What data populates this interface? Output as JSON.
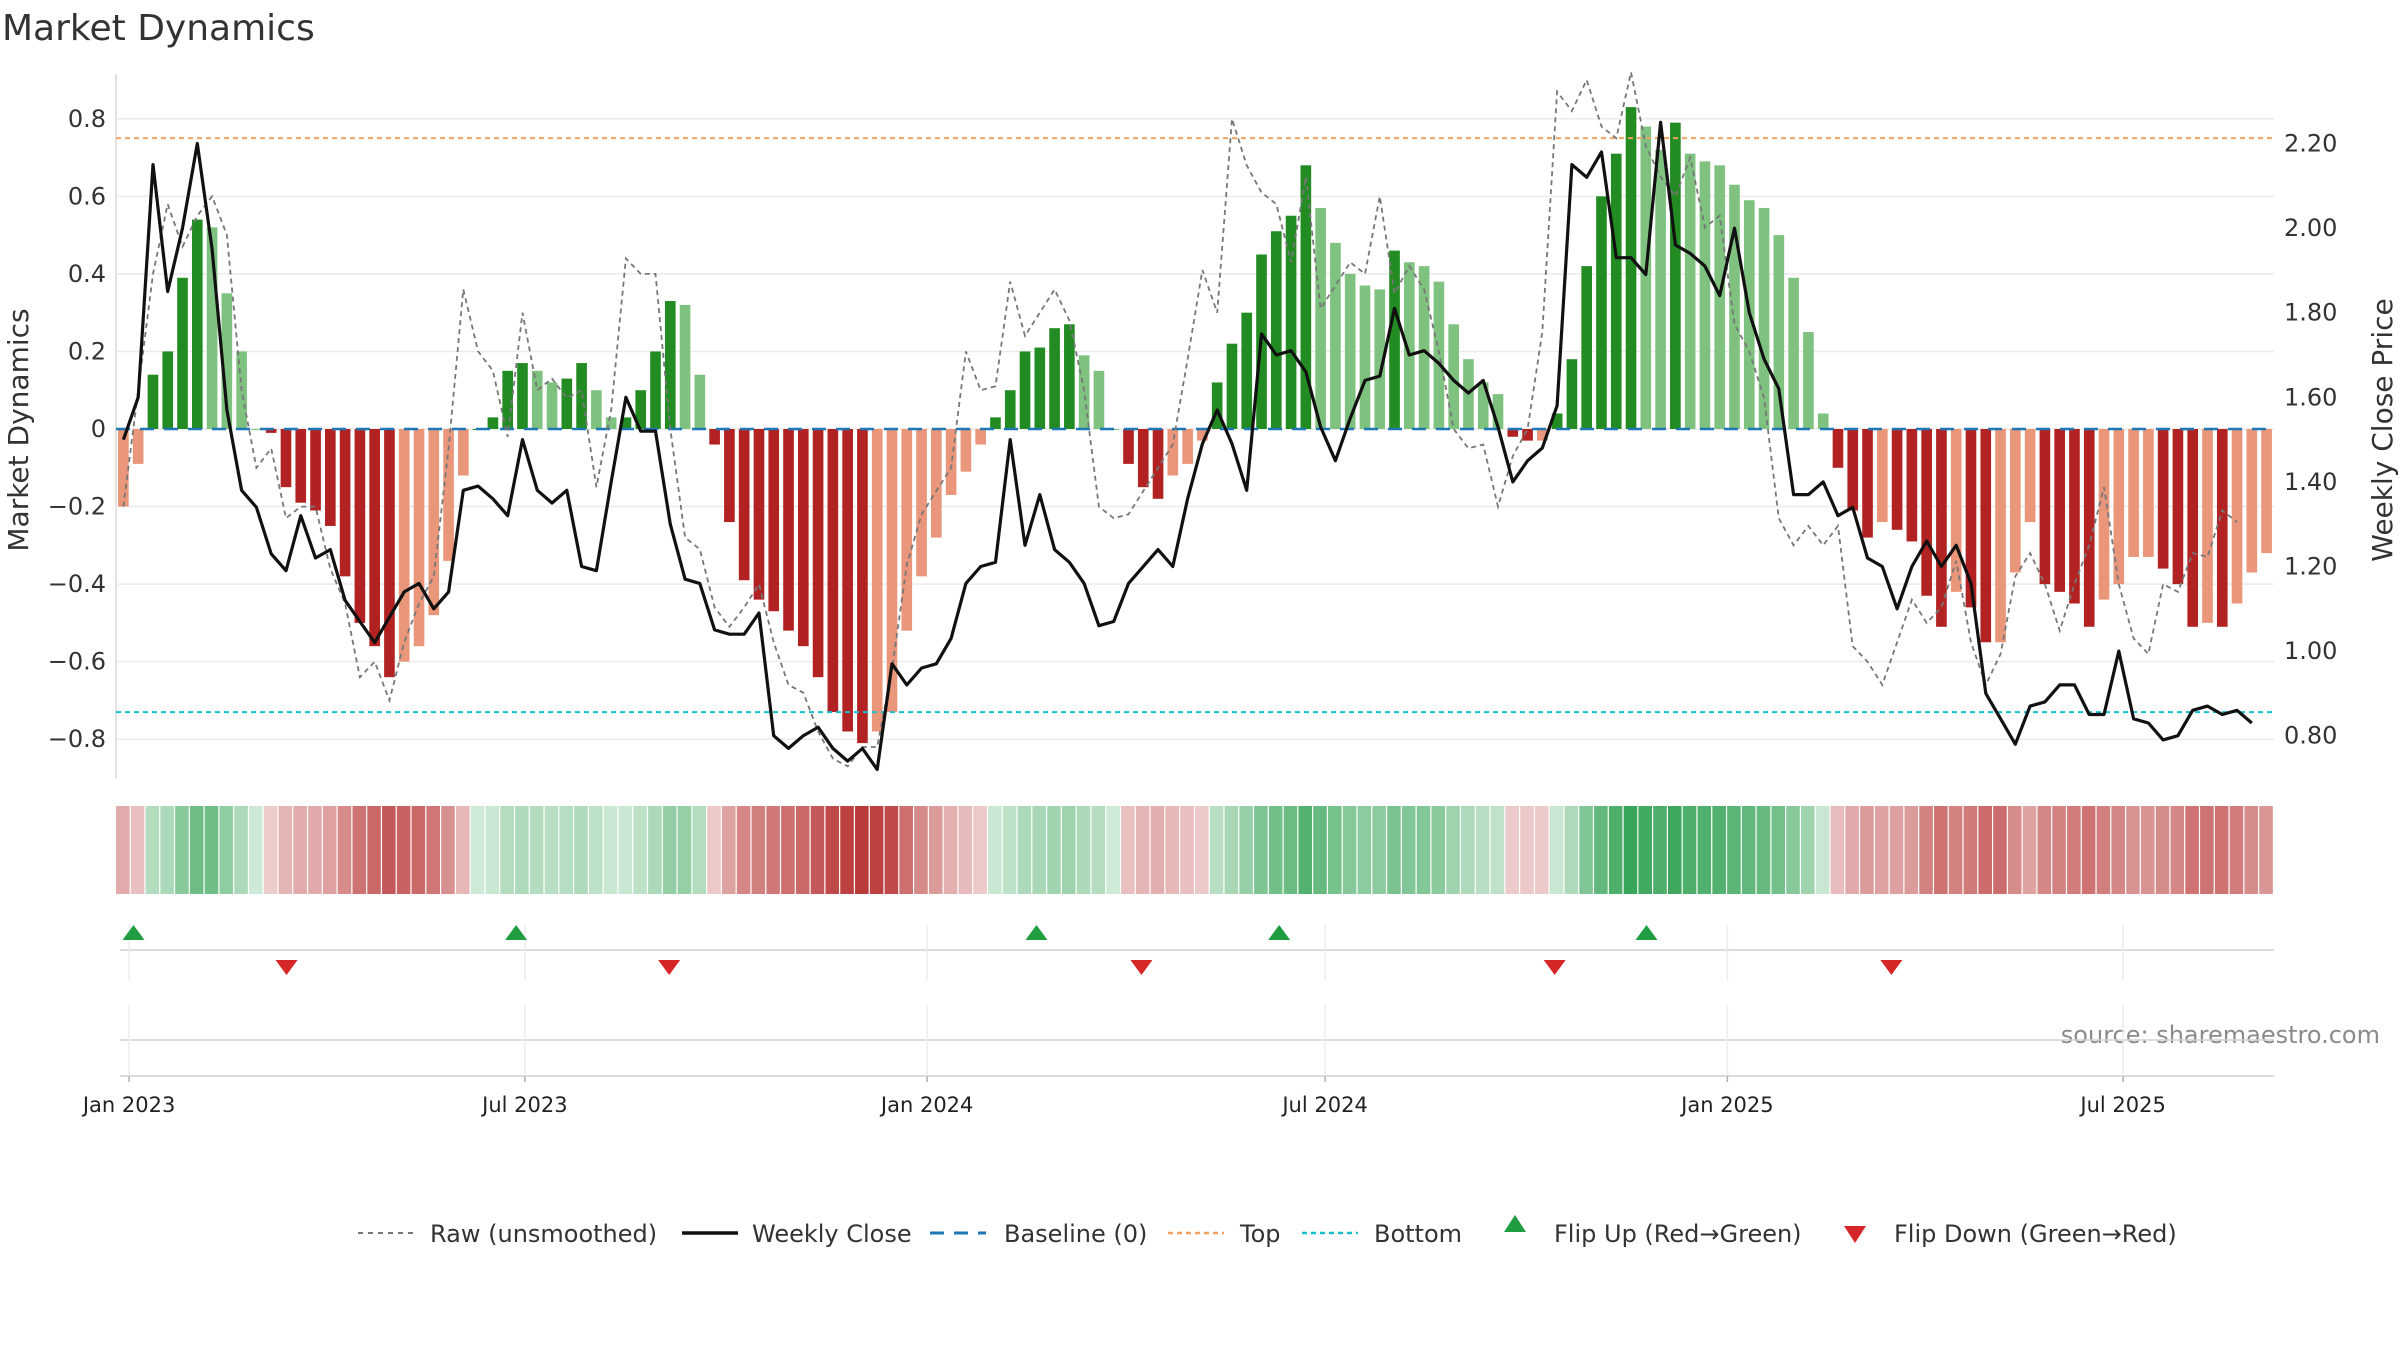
{
  "chart_data": {
    "type": "bar",
    "title": "Market Dynamics",
    "ylabel_left": "Market Dynamics",
    "ylabel_right": "Weekly Close Price",
    "source": "source: sharemaestro.com",
    "ylim_left": [
      -0.9,
      0.9
    ],
    "ylim_right": [
      0.7,
      2.35
    ],
    "y_ticks_left": [
      0.8,
      0.6,
      0.4,
      0.2,
      0,
      -0.2,
      -0.4,
      -0.6,
      -0.8
    ],
    "y_tick_labels_left": [
      "0.8",
      "0.6",
      "0.4",
      "0.2",
      "0",
      "−0.2",
      "−0.4",
      "−0.6",
      "−0.8"
    ],
    "y_ticks_right": [
      2.2,
      2.0,
      1.8,
      1.6,
      1.4,
      1.2,
      1.0,
      0.8
    ],
    "y_tick_labels_right": [
      "2.20",
      "2.00",
      "1.80",
      "1.60",
      "1.40",
      "1.20",
      "1.00",
      "0.80"
    ],
    "x_start": "2022-12-26",
    "x_end": "2025-09-08",
    "x_ticks": [
      {
        "date": "2023-01-01",
        "label": "Jan 2023"
      },
      {
        "date": "2023-07-01",
        "label": "Jul 2023"
      },
      {
        "date": "2024-01-01",
        "label": "Jan 2024"
      },
      {
        "date": "2024-07-01",
        "label": "Jul 2024"
      },
      {
        "date": "2025-01-01",
        "label": "Jan 2025"
      },
      {
        "date": "2025-07-01",
        "label": "Jul 2025"
      }
    ],
    "top_level": 0.75,
    "bottom_level": -0.73,
    "baseline": 0,
    "dynamics": [
      -0.2,
      -0.09,
      0.14,
      0.2,
      0.39,
      0.54,
      0.52,
      0.35,
      0.2,
      0,
      -0.01,
      -0.15,
      -0.19,
      -0.21,
      -0.25,
      -0.38,
      -0.5,
      -0.56,
      -0.64,
      -0.6,
      -0.56,
      -0.48,
      -0.34,
      -0.12,
      0,
      0.03,
      0.15,
      0.17,
      0.15,
      0.12,
      0.13,
      0.17,
      0.1,
      0.03,
      0.03,
      0.1,
      0.2,
      0.33,
      0.32,
      0.14,
      -0.04,
      -0.24,
      -0.39,
      -0.44,
      -0.47,
      -0.52,
      -0.56,
      -0.64,
      -0.73,
      -0.78,
      -0.81,
      -0.78,
      -0.73,
      -0.52,
      -0.38,
      -0.28,
      -0.17,
      -0.11,
      -0.04,
      0.03,
      0.1,
      0.2,
      0.21,
      0.26,
      0.27,
      0.19,
      0.15,
      0,
      -0.09,
      -0.15,
      -0.18,
      -0.12,
      -0.09,
      -0.03,
      0.12,
      0.22,
      0.3,
      0.45,
      0.51,
      0.55,
      0.68,
      0.57,
      0.48,
      0.4,
      0.37,
      0.36,
      0.46,
      0.43,
      0.42,
      0.38,
      0.27,
      0.18,
      0.12,
      0.09,
      -0.02,
      -0.03,
      -0.03,
      0.04,
      0.18,
      0.42,
      0.6,
      0.71,
      0.83,
      0.78,
      0.72,
      0.79,
      0.71,
      0.69,
      0.68,
      0.63,
      0.59,
      0.57,
      0.5,
      0.39,
      0.25,
      0.04,
      -0.1,
      -0.21,
      -0.28,
      -0.24,
      -0.26,
      -0.29,
      -0.43,
      -0.51,
      -0.42,
      -0.46,
      -0.55,
      -0.55,
      -0.37,
      -0.24,
      -0.4,
      -0.42,
      -0.45,
      -0.51,
      -0.44,
      -0.4,
      -0.33,
      -0.33,
      -0.36,
      -0.4,
      -0.51,
      -0.5,
      -0.51,
      -0.45,
      -0.37,
      -0.32
    ],
    "weekly_close": [
      1.5,
      1.6,
      2.15,
      1.85,
      2.0,
      2.2,
      1.95,
      1.57,
      1.38,
      1.34,
      1.23,
      1.19,
      1.32,
      1.22,
      1.24,
      1.12,
      1.07,
      1.02,
      1.08,
      1.14,
      1.16,
      1.1,
      1.14,
      1.38,
      1.39,
      1.36,
      1.32,
      1.5,
      1.38,
      1.35,
      1.38,
      1.2,
      1.19,
      1.4,
      1.6,
      1.52,
      1.52,
      1.3,
      1.17,
      1.16,
      1.05,
      1.04,
      1.04,
      1.09,
      0.8,
      0.77,
      0.8,
      0.82,
      0.77,
      0.74,
      0.77,
      0.72,
      0.97,
      0.92,
      0.96,
      0.97,
      1.03,
      1.16,
      1.2,
      1.21,
      1.5,
      1.25,
      1.37,
      1.24,
      1.21,
      1.16,
      1.06,
      1.07,
      1.16,
      1.2,
      1.24,
      1.2,
      1.36,
      1.49,
      1.57,
      1.49,
      1.38,
      1.75,
      1.7,
      1.71,
      1.66,
      1.53,
      1.45,
      1.55,
      1.64,
      1.65,
      1.81,
      1.7,
      1.71,
      1.68,
      1.64,
      1.61,
      1.64,
      1.53,
      1.4,
      1.45,
      1.48,
      1.58,
      2.15,
      2.12,
      2.18,
      1.93,
      1.93,
      1.89,
      2.25,
      1.96,
      1.94,
      1.91,
      1.84,
      2.0,
      1.8,
      1.69,
      1.62,
      1.37,
      1.37,
      1.4,
      1.32,
      1.34,
      1.22,
      1.2,
      1.1,
      1.2,
      1.26,
      1.2,
      1.25,
      1.16,
      0.9,
      0.84,
      0.78,
      0.87,
      0.88,
      0.92,
      0.92,
      0.85,
      0.85,
      1.0,
      0.84,
      0.83,
      0.79,
      0.8,
      0.86,
      0.87,
      0.85,
      0.86,
      0.83
    ],
    "raw": [
      -0.2,
      0.1,
      0.4,
      0.58,
      0.47,
      0.55,
      0.6,
      0.5,
      0.1,
      -0.1,
      -0.05,
      -0.23,
      -0.2,
      -0.2,
      -0.36,
      -0.45,
      -0.64,
      -0.6,
      -0.7,
      -0.55,
      -0.45,
      -0.38,
      -0.05,
      0.36,
      0.2,
      0.15,
      -0.02,
      0.3,
      0.1,
      0.13,
      0.08,
      0.1,
      -0.15,
      0.05,
      0.44,
      0.4,
      0.4,
      0.0,
      -0.28,
      -0.31,
      -0.46,
      -0.51,
      -0.46,
      -0.4,
      -0.55,
      -0.66,
      -0.68,
      -0.78,
      -0.85,
      -0.87,
      -0.82,
      -0.82,
      -0.62,
      -0.35,
      -0.22,
      -0.16,
      -0.1,
      0.2,
      0.1,
      0.11,
      0.38,
      0.24,
      0.3,
      0.36,
      0.28,
      0.1,
      -0.2,
      -0.23,
      -0.22,
      -0.16,
      -0.1,
      -0.04,
      0.18,
      0.41,
      0.3,
      0.8,
      0.68,
      0.61,
      0.58,
      0.43,
      0.65,
      0.31,
      0.37,
      0.43,
      0.4,
      0.6,
      0.35,
      0.42,
      0.36,
      0.2,
      0.0,
      -0.05,
      -0.04,
      -0.2,
      -0.07,
      0.0,
      0.25,
      0.87,
      0.82,
      0.9,
      0.78,
      0.75,
      0.92,
      0.73,
      0.65,
      0.6,
      0.7,
      0.52,
      0.55,
      0.27,
      0.2,
      0.08,
      -0.23,
      -0.3,
      -0.25,
      -0.3,
      -0.25,
      -0.56,
      -0.6,
      -0.66,
      -0.55,
      -0.44,
      -0.5,
      -0.46,
      -0.34,
      -0.55,
      -0.66,
      -0.58,
      -0.38,
      -0.32,
      -0.4,
      -0.52,
      -0.4,
      -0.3,
      -0.15,
      -0.4,
      -0.54,
      -0.58,
      -0.4,
      -0.42,
      -0.32,
      -0.33,
      -0.21,
      -0.24
    ]
  },
  "legend": {
    "raw": "Raw (unsmoothed)",
    "close": "Weekly Close",
    "baseline": "Baseline (0)",
    "top": "Top",
    "bottom": "Bottom",
    "flip_up": "Flip Up (Red→Green)",
    "flip_down": "Flip Down (Green→Red)"
  },
  "flips": {
    "up": [
      "2023-01-03",
      "2023-06-27",
      "2024-02-20",
      "2024-06-10",
      "2024-11-25"
    ],
    "down": [
      "2023-03-14",
      "2023-09-05",
      "2024-04-08",
      "2024-10-14",
      "2025-03-17"
    ]
  },
  "colors": {
    "green_strong": "#228b22",
    "green_light": "#7fc27f",
    "red_strong": "#b22222",
    "red_light": "#e9967a",
    "close_line": "#111111",
    "raw_line": "#777777",
    "baseline": "#1f77b4",
    "top": "#f4a261",
    "bottom": "#17becf",
    "flip_up": "#1f9d40",
    "flip_down": "#d62728",
    "grid": "#ebebeb"
  }
}
